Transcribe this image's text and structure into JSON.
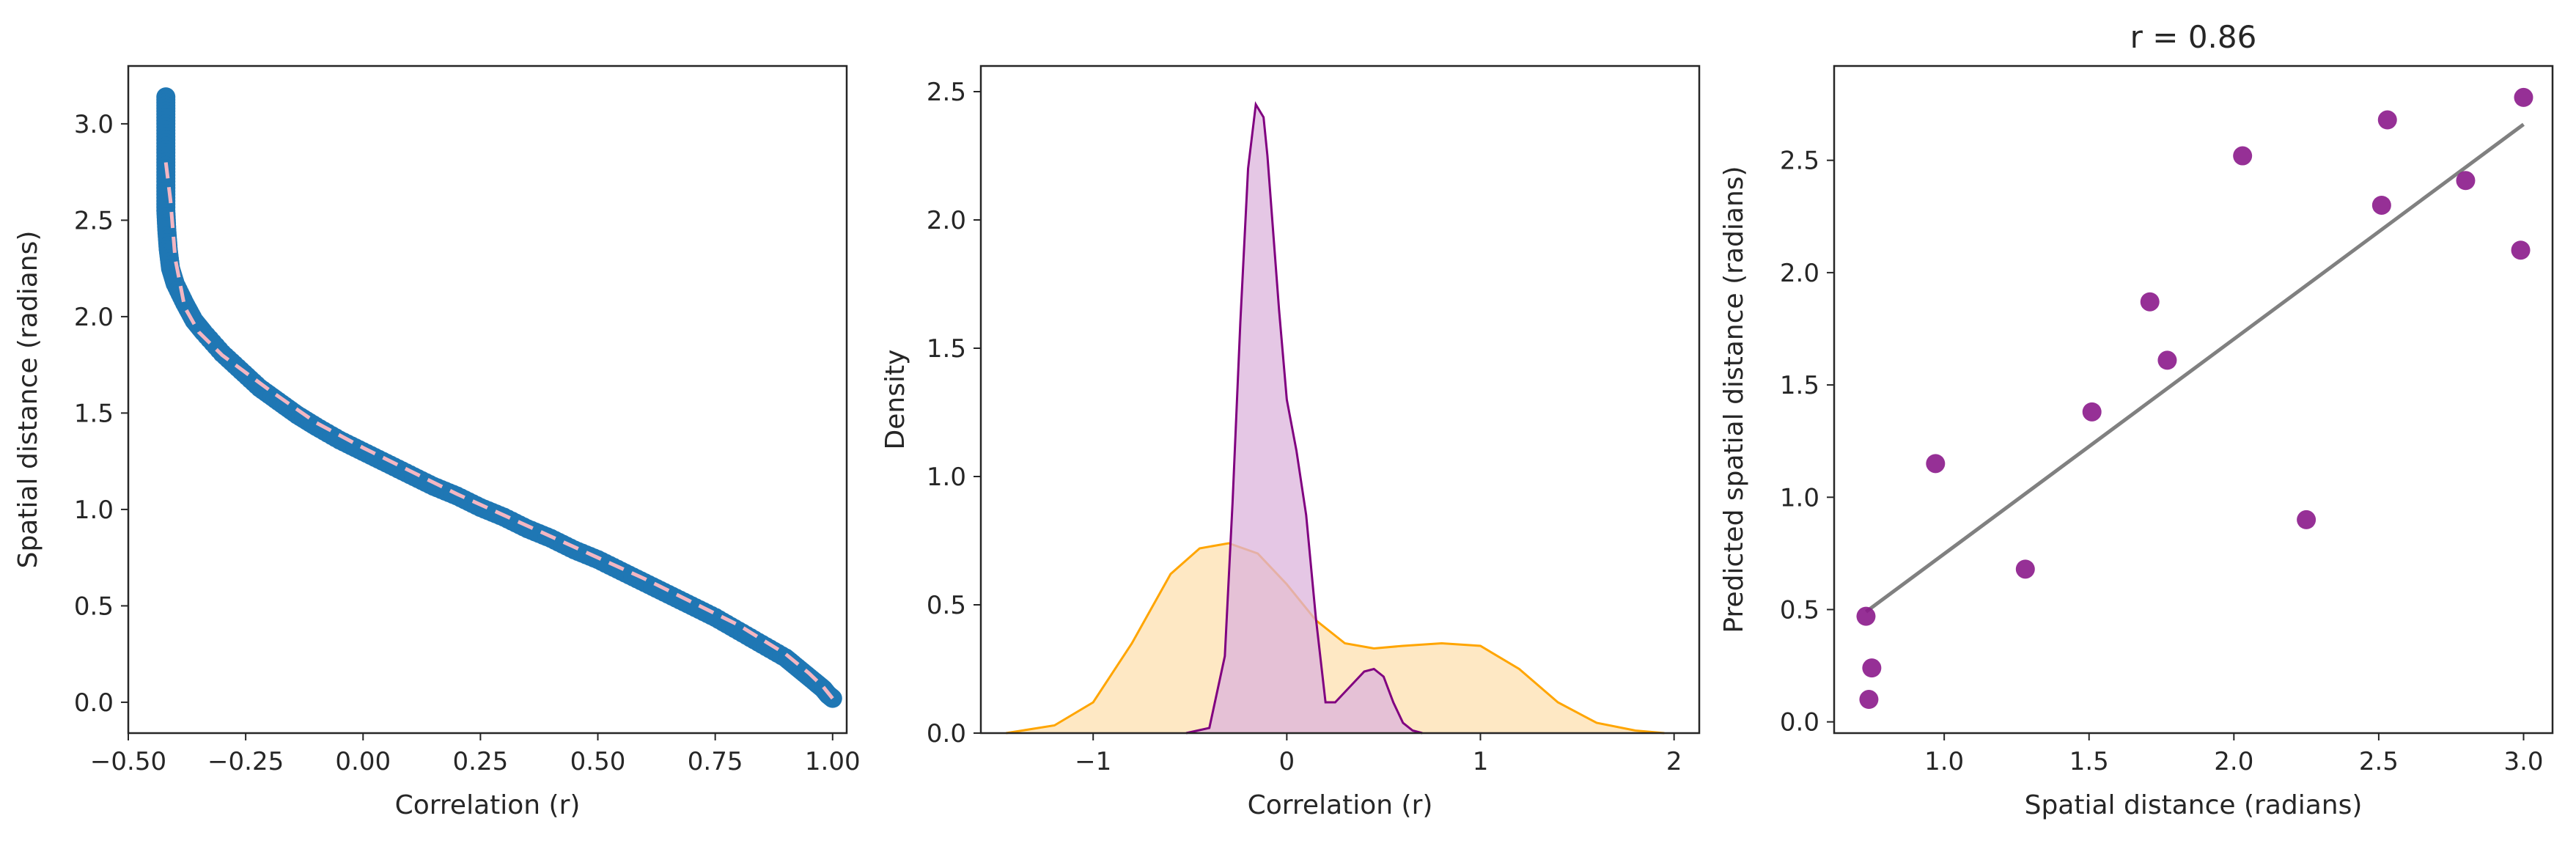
{
  "chart_data": [
    {
      "type": "scatter",
      "title": "",
      "xlabel": "Correlation (r)",
      "ylabel": "Spatial distance (radians)",
      "xlim": [
        -0.5,
        1.03
      ],
      "ylim": [
        -0.16,
        3.3
      ],
      "xticks": [
        -0.5,
        -0.25,
        0.0,
        0.25,
        0.5,
        0.75,
        1.0
      ],
      "xtick_labels": [
        "−0.50",
        "−0.25",
        "0.00",
        "0.25",
        "0.50",
        "0.75",
        "1.00"
      ],
      "yticks": [
        0.0,
        0.5,
        1.0,
        1.5,
        2.0,
        2.5,
        3.0
      ],
      "ytick_labels": [
        "0.0",
        "0.5",
        "1.0",
        "1.5",
        "2.0",
        "2.5",
        "3.0"
      ],
      "grid": false,
      "scatter_color": "#1f77b4",
      "fit_color": "#f4b6c2",
      "series": [
        {
          "style": "points",
          "x": [
            -0.42,
            -0.42,
            -0.42,
            -0.42,
            -0.42,
            -0.42,
            -0.42,
            -0.418,
            -0.415,
            -0.41,
            -0.4,
            -0.38,
            -0.36,
            -0.34,
            -0.3,
            -0.26,
            -0.22,
            -0.18,
            -0.14,
            -0.1,
            -0.05,
            0.0,
            0.05,
            0.1,
            0.15,
            0.2,
            0.25,
            0.3,
            0.35,
            0.4,
            0.45,
            0.5,
            0.55,
            0.6,
            0.65,
            0.7,
            0.75,
            0.8,
            0.85,
            0.9,
            0.93,
            0.96,
            0.98,
            0.99,
            1.0
          ],
          "y": [
            3.14,
            3.05,
            2.95,
            2.85,
            2.75,
            2.65,
            2.55,
            2.45,
            2.35,
            2.25,
            2.17,
            2.07,
            1.98,
            1.92,
            1.81,
            1.72,
            1.63,
            1.56,
            1.49,
            1.43,
            1.36,
            1.3,
            1.24,
            1.18,
            1.12,
            1.07,
            1.01,
            0.96,
            0.9,
            0.85,
            0.79,
            0.74,
            0.68,
            0.62,
            0.56,
            0.5,
            0.44,
            0.37,
            0.3,
            0.23,
            0.17,
            0.11,
            0.07,
            0.04,
            0.02
          ]
        },
        {
          "style": "dashed-line",
          "x": [
            -0.42,
            -0.41,
            -0.4,
            -0.38,
            -0.35,
            -0.3,
            -0.25,
            -0.2,
            -0.1,
            0.0,
            0.1,
            0.2,
            0.3,
            0.4,
            0.5,
            0.6,
            0.7,
            0.8,
            0.9,
            0.95,
            0.98,
            1.0
          ],
          "y": [
            2.8,
            2.6,
            2.3,
            2.05,
            1.92,
            1.8,
            1.71,
            1.62,
            1.45,
            1.32,
            1.2,
            1.08,
            0.97,
            0.86,
            0.75,
            0.64,
            0.52,
            0.4,
            0.25,
            0.15,
            0.08,
            0.02
          ]
        }
      ]
    },
    {
      "type": "area",
      "title": "",
      "xlabel": "Correlation (r)",
      "ylabel": "Density",
      "xlim": [
        -1.58,
        2.13
      ],
      "ylim": [
        0,
        2.6
      ],
      "xticks": [
        -1,
        0,
        1,
        2
      ],
      "xtick_labels": [
        "−1",
        "0",
        "1",
        "2"
      ],
      "yticks": [
        0.0,
        0.5,
        1.0,
        1.5,
        2.0,
        2.5
      ],
      "ytick_labels": [
        "0.0",
        "0.5",
        "1.0",
        "1.5",
        "2.0",
        "2.5"
      ],
      "grid": false,
      "series": [
        {
          "color": "#800080",
          "fill": "#dcb4dc",
          "x": [
            -0.52,
            -0.4,
            -0.32,
            -0.28,
            -0.24,
            -0.2,
            -0.16,
            -0.12,
            -0.1,
            -0.08,
            -0.04,
            0.0,
            0.05,
            0.1,
            0.15,
            0.2,
            0.25,
            0.3,
            0.35,
            0.4,
            0.45,
            0.5,
            0.55,
            0.6,
            0.65,
            0.7
          ],
          "y": [
            0.0,
            0.02,
            0.3,
            0.9,
            1.6,
            2.2,
            2.45,
            2.4,
            2.25,
            2.05,
            1.65,
            1.3,
            1.1,
            0.85,
            0.45,
            0.12,
            0.12,
            0.16,
            0.2,
            0.24,
            0.25,
            0.22,
            0.12,
            0.04,
            0.01,
            0.0
          ]
        },
        {
          "color": "#ffa500",
          "fill": "#fde0b0",
          "x": [
            -1.45,
            -1.2,
            -1.0,
            -0.8,
            -0.6,
            -0.45,
            -0.3,
            -0.15,
            0.0,
            0.15,
            0.3,
            0.45,
            0.6,
            0.8,
            1.0,
            1.2,
            1.4,
            1.6,
            1.8,
            1.95
          ],
          "y": [
            0.0,
            0.03,
            0.12,
            0.35,
            0.62,
            0.72,
            0.74,
            0.7,
            0.58,
            0.44,
            0.35,
            0.33,
            0.34,
            0.35,
            0.34,
            0.25,
            0.12,
            0.04,
            0.01,
            0.0
          ]
        }
      ]
    },
    {
      "type": "scatter",
      "title": "r = 0.86",
      "xlabel": "Spatial distance (radians)",
      "ylabel": "Predicted spatial distance (radians)",
      "xlim": [
        0.62,
        3.1
      ],
      "ylim": [
        -0.05,
        2.92
      ],
      "xticks": [
        1.0,
        1.5,
        2.0,
        2.5,
        3.0
      ],
      "xtick_labels": [
        "1.0",
        "1.5",
        "2.0",
        "2.5",
        "3.0"
      ],
      "yticks": [
        0.0,
        0.5,
        1.0,
        1.5,
        2.0,
        2.5
      ],
      "ytick_labels": [
        "0.0",
        "0.5",
        "1.0",
        "1.5",
        "2.0",
        "2.5"
      ],
      "grid": false,
      "point_color": "#8b1a8b",
      "line_color": "#808080",
      "series": [
        {
          "style": "points",
          "x": [
            0.73,
            0.74,
            0.75,
            0.97,
            1.28,
            1.51,
            1.71,
            1.77,
            2.03,
            2.25,
            2.51,
            2.53,
            2.8,
            2.99,
            3.0
          ],
          "y": [
            0.47,
            0.1,
            0.24,
            1.15,
            0.68,
            1.38,
            1.87,
            1.61,
            2.52,
            0.9,
            2.3,
            2.68,
            2.41,
            2.1,
            2.78
          ]
        },
        {
          "style": "line",
          "x": [
            0.73,
            3.0
          ],
          "y": [
            0.49,
            2.66
          ]
        }
      ]
    }
  ]
}
